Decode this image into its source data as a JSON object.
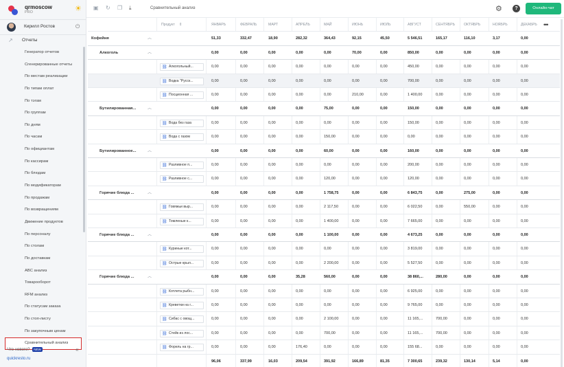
{
  "brand": {
    "name": "qrmoscow",
    "plan": "PRO"
  },
  "user": {
    "name": "Кирилл Ростов"
  },
  "sidebar": {
    "reports_label": "Отчеты",
    "items": [
      "Генератор отчетов",
      "Сгенерированные отчеты",
      "По местам реализации",
      "По типам оплат",
      "По тэгам",
      "По группам",
      "По дням",
      "По часам",
      "По официантам",
      "По кассирам",
      "По блюдам",
      "По модификаторам",
      "По продажам",
      "По возвращениям",
      "Движение продуктов",
      "По персоналу",
      "По столам",
      "По доставкам",
      "ABC анализ",
      "Товарооборот",
      "RFM анализ",
      "По статусам заказа",
      "По стоп-листу",
      "По закупочным ценам",
      "Сравнительный анализ"
    ],
    "active_item": "Сравнительный анализ",
    "whats_new": "Что нового?",
    "new_badge": "NEW",
    "site": "quickresto.ru"
  },
  "toolbar": {
    "title": "Сравнительный анализ",
    "online_button": "Онлайн-чат"
  },
  "table": {
    "product_header": "Продукт",
    "months": [
      "ЯНВАРЬ",
      "ФЕВРАЛЬ",
      "МАРТ",
      "АПРЕЛЬ",
      "МАЙ",
      "ИЮНЬ",
      "ИЮЛЬ",
      "АВГУСТ",
      "СЕНТЯБРЬ",
      "ОКТЯБРЬ",
      "НОЯБРЬ",
      "ДЕКАБРЬ"
    ],
    "rows": [
      {
        "kind": "top",
        "name": "Кофейня",
        "values": [
          "51,33",
          "332,47",
          "18,90",
          "282,32",
          "364,43",
          "92,15",
          "45,50",
          "5 546,51",
          "165,17",
          "116,10",
          "3,17",
          "0,00"
        ]
      },
      {
        "kind": "group",
        "name": "Алкоголь",
        "values": [
          "0,00",
          "0,00",
          "0,00",
          "0,00",
          "0,00",
          "70,00",
          "0,00",
          "850,00",
          "0,00",
          "0,00",
          "0,00",
          "0,00"
        ]
      },
      {
        "kind": "item",
        "name": "Алкогольный...",
        "values": [
          "0,00",
          "0,00",
          "0,00",
          "0,00",
          "0,00",
          "0,00",
          "0,00",
          "450,00",
          "0,00",
          "0,00",
          "0,00",
          "0,00"
        ]
      },
      {
        "kind": "item",
        "name": "Водка \"Русск...",
        "values": [
          "0,00",
          "0,00",
          "0,00",
          "0,00",
          "0,00",
          "0,00",
          "0,00",
          "700,00",
          "0,00",
          "0,00",
          "0,00",
          "0,00"
        ],
        "hl": true
      },
      {
        "kind": "item",
        "name": "Посционная ...",
        "values": [
          "0,00",
          "0,00",
          "0,00",
          "0,00",
          "0,00",
          "210,00",
          "0,00",
          "1 400,00",
          "0,00",
          "0,00",
          "0,00",
          "0,00"
        ]
      },
      {
        "kind": "group",
        "name": "Бутилированная...",
        "values": [
          "0,00",
          "0,00",
          "0,00",
          "0,00",
          "75,00",
          "0,00",
          "0,00",
          "150,00",
          "0,00",
          "0,00",
          "0,00",
          "0,00"
        ]
      },
      {
        "kind": "item",
        "name": "Вода без газа",
        "values": [
          "0,00",
          "0,00",
          "0,00",
          "0,00",
          "0,00",
          "0,00",
          "0,00",
          "150,00",
          "0,00",
          "0,00",
          "0,00",
          "0,00"
        ]
      },
      {
        "kind": "item",
        "name": "Вода с газом",
        "values": [
          "0,00",
          "0,00",
          "0,00",
          "0,00",
          "150,00",
          "0,00",
          "0,00",
          "0,00",
          "0,00",
          "0,00",
          "0,00",
          "0,00"
        ]
      },
      {
        "kind": "group",
        "name": "Бутилированное...",
        "values": [
          "0,00",
          "0,00",
          "0,00",
          "0,00",
          "60,00",
          "0,00",
          "0,00",
          "160,00",
          "0,00",
          "0,00",
          "0,00",
          "0,00"
        ]
      },
      {
        "kind": "item",
        "name": "Разливное п...",
        "values": [
          "0,00",
          "0,00",
          "0,00",
          "0,00",
          "0,00",
          "0,00",
          "0,00",
          "200,00",
          "0,00",
          "0,00",
          "0,00",
          "0,00"
        ]
      },
      {
        "kind": "item",
        "name": "Разливное с...",
        "values": [
          "0,00",
          "0,00",
          "0,00",
          "0,00",
          "120,00",
          "0,00",
          "0,00",
          "120,00",
          "0,00",
          "0,00",
          "0,00",
          "0,00"
        ]
      },
      {
        "kind": "group",
        "name": "Горячие блюда ...",
        "values": [
          "0,00",
          "0,00",
          "0,00",
          "0,00",
          "1 758,75",
          "0,00",
          "0,00",
          "6 843,75",
          "0,00",
          "275,00",
          "0,00",
          "0,00"
        ]
      },
      {
        "kind": "item",
        "name": "Говяжьи выр...",
        "values": [
          "0,00",
          "0,00",
          "0,00",
          "0,00",
          "2 117,50",
          "0,00",
          "0,00",
          "6 022,50",
          "0,00",
          "550,00",
          "0,00",
          "0,00"
        ]
      },
      {
        "kind": "item",
        "name": "Томленые к...",
        "values": [
          "0,00",
          "0,00",
          "0,00",
          "0,00",
          "1 400,00",
          "0,00",
          "0,00",
          "7 665,00",
          "0,00",
          "0,00",
          "0,00",
          "0,00"
        ]
      },
      {
        "kind": "group",
        "name": "Горячие блюда ...",
        "values": [
          "0,00",
          "0,00",
          "0,00",
          "0,00",
          "1 100,00",
          "0,00",
          "0,00",
          "4 673,25",
          "0,00",
          "0,00",
          "0,00",
          "0,00"
        ]
      },
      {
        "kind": "item",
        "name": "Куриные кот...",
        "values": [
          "0,00",
          "0,00",
          "0,00",
          "0,00",
          "0,00",
          "0,00",
          "0,00",
          "3 819,00",
          "0,00",
          "0,00",
          "0,00",
          "0,00"
        ]
      },
      {
        "kind": "item",
        "name": "Острые крыл...",
        "values": [
          "0,00",
          "0,00",
          "0,00",
          "0,00",
          "2 200,00",
          "0,00",
          "0,00",
          "5 527,50",
          "0,00",
          "0,00",
          "0,00",
          "0,00"
        ]
      },
      {
        "kind": "group",
        "name": "Горячие блюда ...",
        "values": [
          "0,00",
          "0,00",
          "0,00",
          "35,28",
          "560,00",
          "0,00",
          "0,00",
          "38 860,...",
          "280,00",
          "0,00",
          "0,00",
          "0,00"
        ]
      },
      {
        "kind": "item",
        "name": "Котлета рыбн...",
        "values": [
          "0,00",
          "0,00",
          "0,00",
          "0,00",
          "0,00",
          "0,00",
          "0,00",
          "6 925,00",
          "0,00",
          "0,00",
          "0,00",
          "0,00"
        ]
      },
      {
        "kind": "item",
        "name": "Креветки на г...",
        "values": [
          "0,00",
          "0,00",
          "0,00",
          "0,00",
          "0,00",
          "0,00",
          "0,00",
          "9 765,00",
          "0,00",
          "0,00",
          "0,00",
          "0,00"
        ]
      },
      {
        "kind": "item",
        "name": "Сибас с овощ...",
        "values": [
          "0,00",
          "0,00",
          "0,00",
          "0,00",
          "2 100,00",
          "0,00",
          "0,00",
          "11 165,...",
          "700,00",
          "0,00",
          "0,00",
          "0,00"
        ]
      },
      {
        "kind": "item",
        "name": "Стейк из лос...",
        "values": [
          "0,00",
          "0,00",
          "0,00",
          "0,00",
          "700,00",
          "0,00",
          "0,00",
          "11 165,...",
          "700,00",
          "0,00",
          "0,00",
          "0,00"
        ]
      },
      {
        "kind": "item",
        "name": "Форель на гр...",
        "values": [
          "0,00",
          "0,00",
          "0,00",
          "176,40",
          "0,00",
          "0,00",
          "0,00",
          "155 68...",
          "0,00",
          "0,00",
          "0,00",
          "0,00"
        ]
      },
      {
        "kind": "total",
        "name": "",
        "values": [
          "96,06",
          "337,99",
          "16,03",
          "209,54",
          "391,92",
          "166,89",
          "81,35",
          "7 300,65",
          "239,32",
          "130,14",
          "5,14",
          "0,00"
        ]
      }
    ]
  }
}
